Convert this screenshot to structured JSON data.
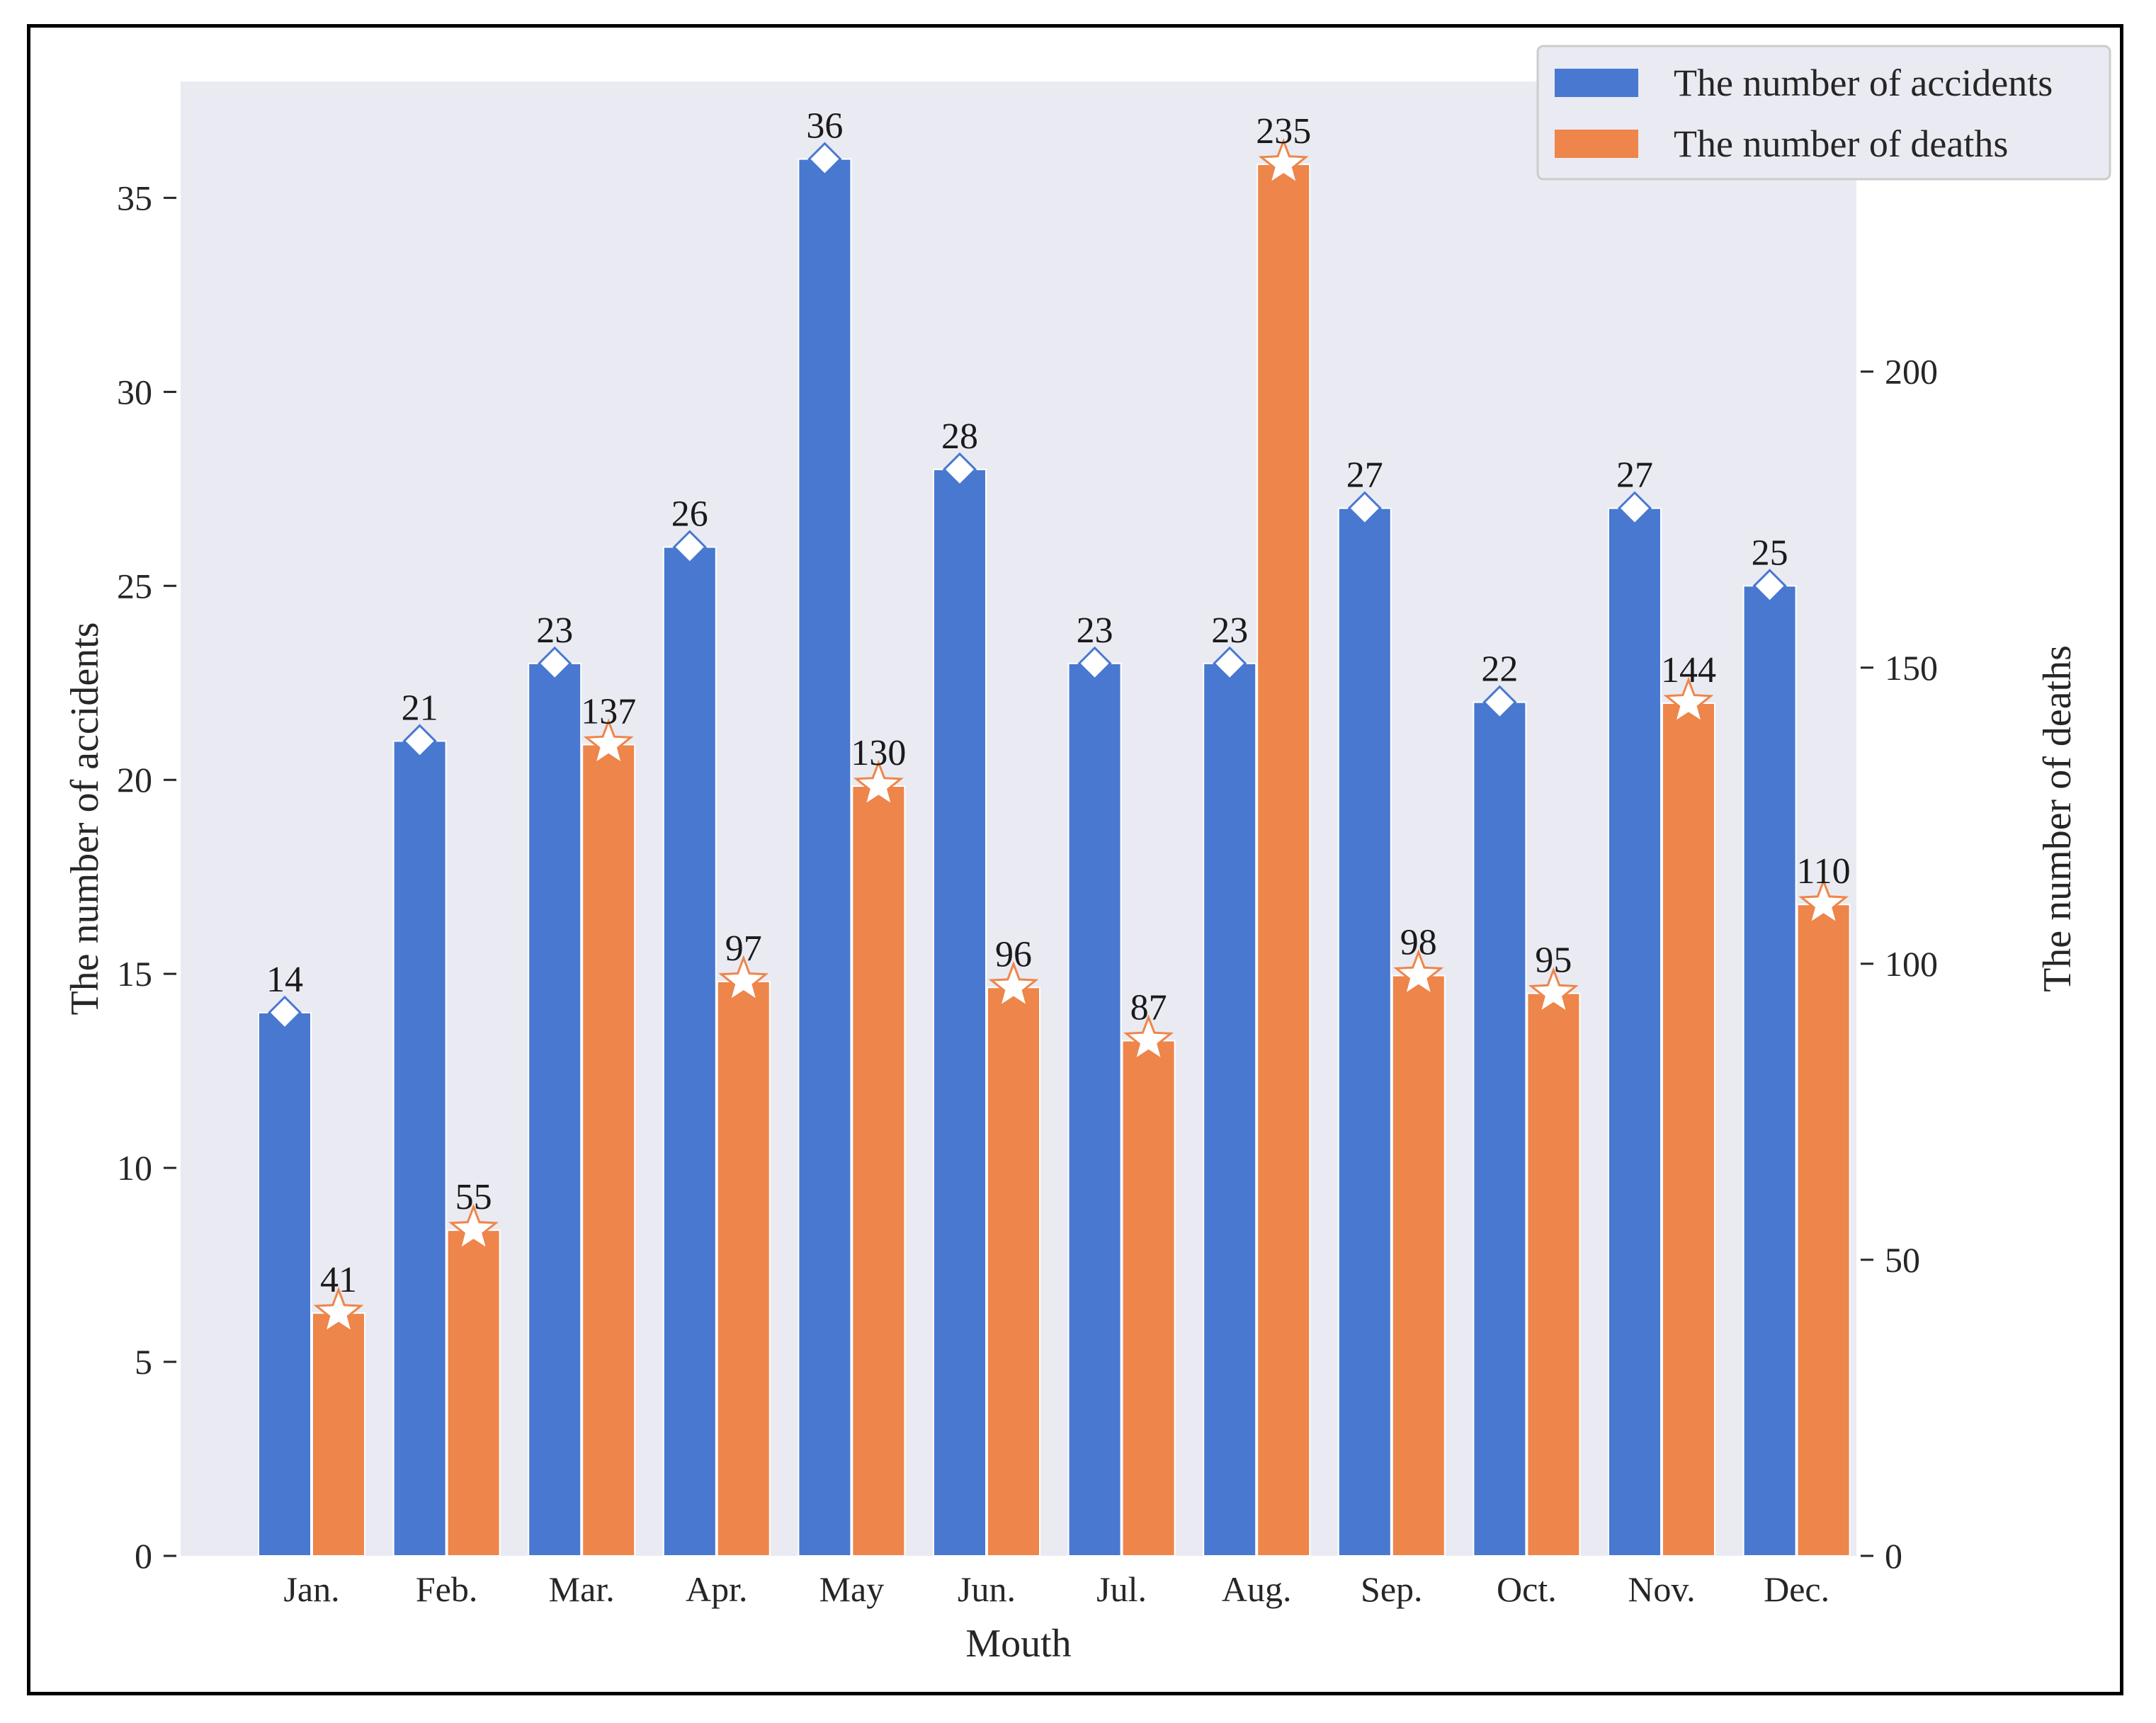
{
  "chart_data": {
    "type": "bar",
    "categories": [
      "Jan.",
      "Feb.",
      "Mar.",
      "Apr.",
      "May",
      "Jun.",
      "Jul.",
      "Aug.",
      "Sep.",
      "Oct.",
      "Nov.",
      "Dec."
    ],
    "series": [
      {
        "name": "The number of accidents",
        "axis": "left",
        "color": "#4878cf",
        "marker": "diamond",
        "values": [
          14,
          21,
          23,
          26,
          36,
          28,
          23,
          23,
          27,
          22,
          27,
          25
        ]
      },
      {
        "name": "The number of deaths",
        "axis": "right",
        "color": "#ee854a",
        "marker": "star",
        "values": [
          41,
          55,
          137,
          97,
          130,
          96,
          87,
          235,
          98,
          95,
          144,
          110
        ]
      }
    ],
    "xlabel": "Mouth",
    "ylabel_left": "The number of accidents",
    "ylabel_right": "The number of deaths",
    "ylim_left": [
      0,
      38
    ],
    "ylim_right": [
      0,
      249
    ],
    "yticks_left": [
      0,
      5,
      10,
      15,
      20,
      25,
      30,
      35
    ],
    "yticks_right": [
      0,
      50,
      100,
      150,
      200
    ],
    "legend_position": "top-right",
    "grid": false,
    "plot_background": "#eaeaf2"
  }
}
